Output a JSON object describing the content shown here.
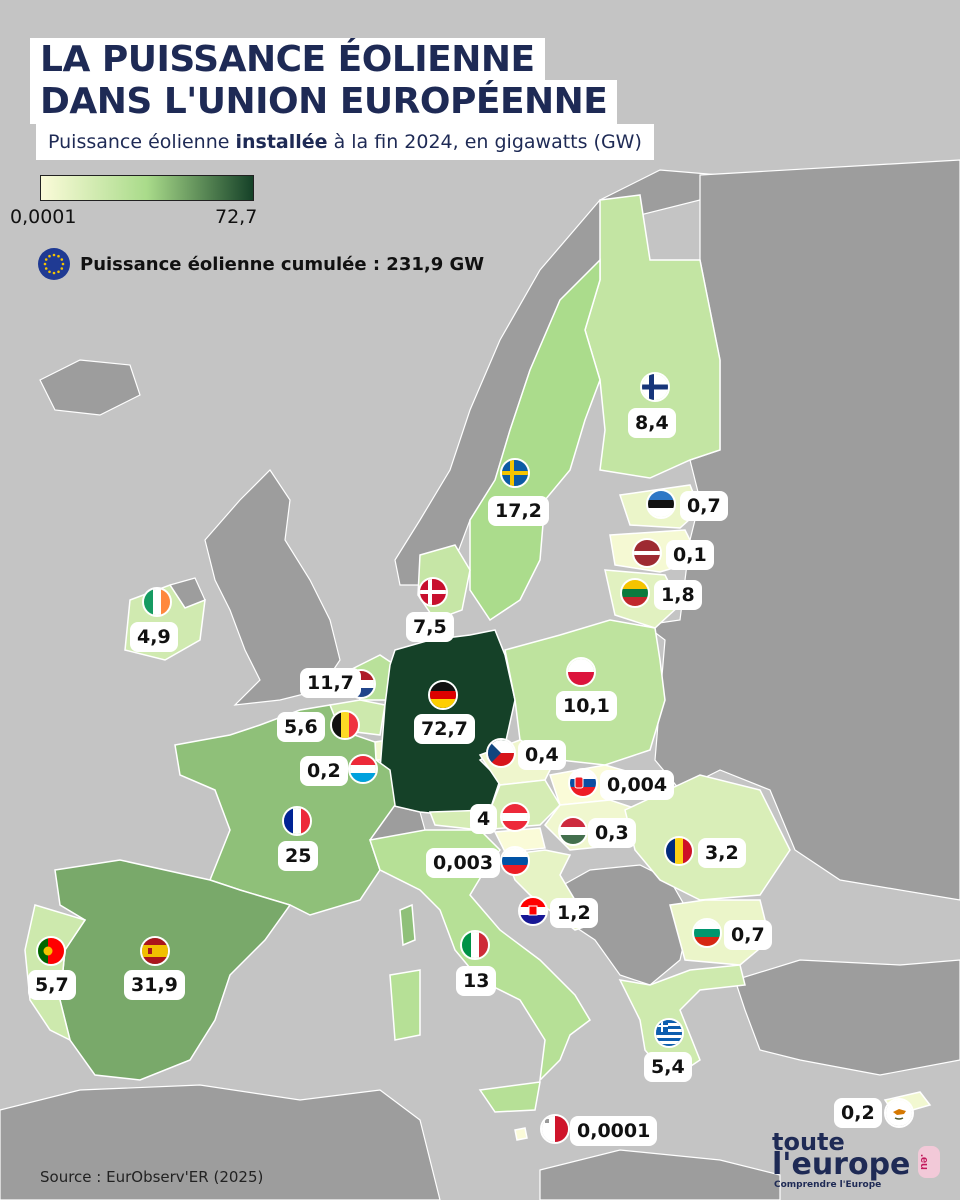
{
  "title": {
    "line1": "LA PUISSANCE ÉOLIENNE",
    "line2": "DANS L'UNION EUROPÉENNE"
  },
  "subtitle": {
    "before": "Puissance éolienne ",
    "bold": "installée",
    "after": " à la fin 2024, en gigawatts (GW)"
  },
  "legend": {
    "min_label": "0,0001",
    "max_label": "72,7",
    "min_value": 0.0001,
    "max_value": 72.7,
    "color_low": "#fbfbd9",
    "color_mid": "#a9db8a",
    "color_high": "#154128"
  },
  "cumulative": {
    "icon": "eu-flag-icon",
    "label": "Puissance éolienne cumulée : 231,9 GW",
    "value_gw": 231.9
  },
  "colors": {
    "title_navy": "#1e2a55",
    "sea": "#c4c4c4",
    "non_eu_land": "#9d9d9d",
    "borders": "#ffffff"
  },
  "countries": [
    {
      "code": "de",
      "name": "Allemagne",
      "value_gw": 72.7,
      "label": "72,7",
      "flag_icon": "germany-flag-icon"
    },
    {
      "code": "es",
      "name": "Espagne",
      "value_gw": 31.9,
      "label": "31,9",
      "flag_icon": "spain-flag-icon"
    },
    {
      "code": "fr",
      "name": "France",
      "value_gw": 25,
      "label": "25",
      "flag_icon": "france-flag-icon"
    },
    {
      "code": "se",
      "name": "Suède",
      "value_gw": 17.2,
      "label": "17,2",
      "flag_icon": "sweden-flag-icon"
    },
    {
      "code": "it",
      "name": "Italie",
      "value_gw": 13,
      "label": "13",
      "flag_icon": "italy-flag-icon"
    },
    {
      "code": "nl",
      "name": "Pays-Bas",
      "value_gw": 11.7,
      "label": "11,7",
      "flag_icon": "netherlands-flag-icon"
    },
    {
      "code": "pl",
      "name": "Pologne",
      "value_gw": 10.1,
      "label": "10,1",
      "flag_icon": "poland-flag-icon"
    },
    {
      "code": "fi",
      "name": "Finlande",
      "value_gw": 8.4,
      "label": "8,4",
      "flag_icon": "finland-flag-icon"
    },
    {
      "code": "dk",
      "name": "Danemark",
      "value_gw": 7.5,
      "label": "7,5",
      "flag_icon": "denmark-flag-icon"
    },
    {
      "code": "pt",
      "name": "Portugal",
      "value_gw": 5.7,
      "label": "5,7",
      "flag_icon": "portugal-flag-icon"
    },
    {
      "code": "be",
      "name": "Belgique",
      "value_gw": 5.6,
      "label": "5,6",
      "flag_icon": "belgium-flag-icon"
    },
    {
      "code": "gr",
      "name": "Grèce",
      "value_gw": 5.4,
      "label": "5,4",
      "flag_icon": "greece-flag-icon"
    },
    {
      "code": "ie",
      "name": "Irlande",
      "value_gw": 4.9,
      "label": "4,9",
      "flag_icon": "ireland-flag-icon"
    },
    {
      "code": "at",
      "name": "Autriche",
      "value_gw": 4,
      "label": "4",
      "flag_icon": "austria-flag-icon"
    },
    {
      "code": "ro",
      "name": "Roumanie",
      "value_gw": 3.2,
      "label": "3,2",
      "flag_icon": "romania-flag-icon"
    },
    {
      "code": "lt",
      "name": "Lituanie",
      "value_gw": 1.8,
      "label": "1,8",
      "flag_icon": "lithuania-flag-icon"
    },
    {
      "code": "hr",
      "name": "Croatie",
      "value_gw": 1.2,
      "label": "1,2",
      "flag_icon": "croatia-flag-icon"
    },
    {
      "code": "ee",
      "name": "Estonie",
      "value_gw": 0.7,
      "label": "0,7",
      "flag_icon": "estonia-flag-icon"
    },
    {
      "code": "bg",
      "name": "Bulgarie",
      "value_gw": 0.7,
      "label": "0,7",
      "flag_icon": "bulgaria-flag-icon"
    },
    {
      "code": "cz",
      "name": "Tchéquie",
      "value_gw": 0.4,
      "label": "0,4",
      "flag_icon": "czechia-flag-icon"
    },
    {
      "code": "hu",
      "name": "Hongrie",
      "value_gw": 0.3,
      "label": "0,3",
      "flag_icon": "hungary-flag-icon"
    },
    {
      "code": "lu",
      "name": "Luxembourg",
      "value_gw": 0.2,
      "label": "0,2",
      "flag_icon": "luxembourg-flag-icon"
    },
    {
      "code": "cy",
      "name": "Chypre",
      "value_gw": 0.2,
      "label": "0,2",
      "flag_icon": "cyprus-flag-icon"
    },
    {
      "code": "lv",
      "name": "Lettonie",
      "value_gw": 0.1,
      "label": "0,1",
      "flag_icon": "latvia-flag-icon"
    },
    {
      "code": "sk",
      "name": "Slovaquie",
      "value_gw": 0.004,
      "label": "0,004",
      "flag_icon": "slovakia-flag-icon"
    },
    {
      "code": "si",
      "name": "Slovénie",
      "value_gw": 0.003,
      "label": "0,003",
      "flag_icon": "slovenia-flag-icon"
    },
    {
      "code": "mt",
      "name": "Malte",
      "value_gw": 0.0001,
      "label": "0,0001",
      "flag_icon": "malta-flag-icon"
    }
  ],
  "source": "Source : EurObserv'ER (2025)",
  "logo": {
    "line1": "toute",
    "line2": "l'europe",
    "tagline": "Comprendre l'Europe",
    "badge": ".eu"
  }
}
